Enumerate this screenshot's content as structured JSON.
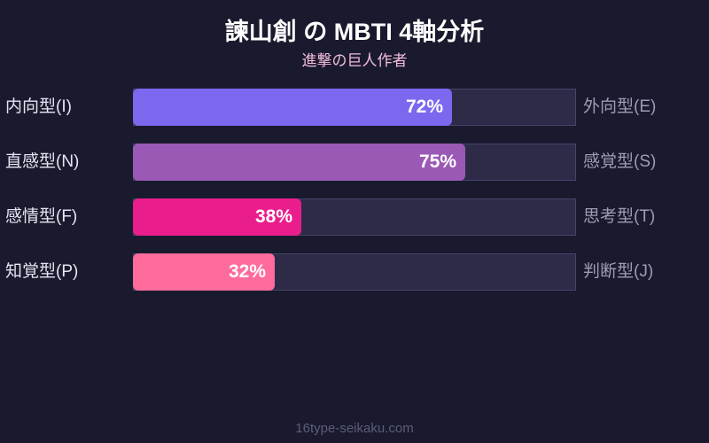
{
  "chart_data": {
    "type": "bar",
    "orientation": "horizontal",
    "title": "諫山創 の MBTI 4軸分析",
    "subtitle": "進撃の巨人作者",
    "xlim": [
      0,
      100
    ],
    "rows": [
      {
        "left": "内向型(I)",
        "right": "外向型(E)",
        "value": 72,
        "label": "72%",
        "color": "#7b68ee"
      },
      {
        "left": "直感型(N)",
        "right": "感覚型(S)",
        "value": 75,
        "label": "75%",
        "color": "#9b59b6"
      },
      {
        "left": "感情型(F)",
        "right": "思考型(T)",
        "value": 38,
        "label": "38%",
        "color": "#e91e8c"
      },
      {
        "left": "知覚型(P)",
        "right": "判断型(J)",
        "value": 32,
        "label": "32%",
        "color": "#ff6b9d"
      }
    ]
  },
  "footer": "16type-seikaku.com"
}
